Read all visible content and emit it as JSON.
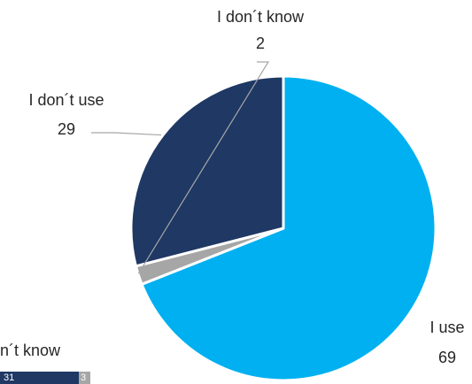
{
  "chart_data": {
    "type": "pie",
    "title": "",
    "slices": [
      {
        "label": "I use",
        "value": 69,
        "color": "#00B0F0"
      },
      {
        "label": "I don´t know",
        "value": 2,
        "color": "#A6A6A6"
      },
      {
        "label": "I don´t use",
        "value": 29,
        "color": "#1F3864"
      }
    ],
    "legend_fragment": {
      "text": "n´t know",
      "segments": [
        {
          "label": "31",
          "color": "#1F3864"
        },
        {
          "label": "3",
          "color": "#A6A6A6"
        }
      ]
    }
  }
}
